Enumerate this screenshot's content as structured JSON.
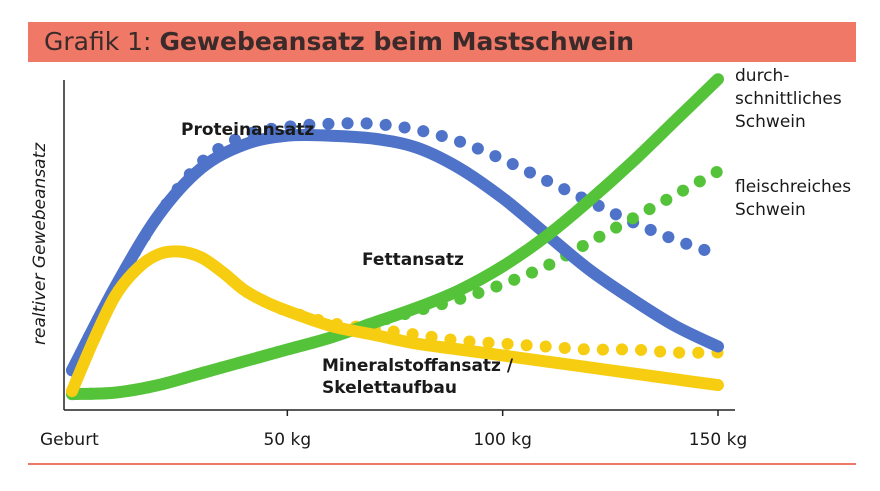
{
  "header": {
    "prefix": "Grafik 1:",
    "title": "Gewebeansatz beim Mastschwein"
  },
  "colors": {
    "header_bg": "#ef7867",
    "protein": "#4f73c9",
    "fat": "#55c33a",
    "mineral": "#f7cd12"
  },
  "chart_data": {
    "type": "line",
    "title": "Gewebeansatz beim Mastschwein",
    "ylabel": "realtiver Gewebeansatz",
    "xlabel": "",
    "xlim": [
      0,
      150
    ],
    "ylim": [
      0,
      100
    ],
    "x_ticks": [
      {
        "value": 0,
        "label": "Geburt"
      },
      {
        "value": 50,
        "label": "50 kg"
      },
      {
        "value": 100,
        "label": "100 kg"
      },
      {
        "value": 150,
        "label": "150 kg"
      }
    ],
    "grid": false,
    "legend": "inline labels",
    "curve_labels": {
      "protein": "Proteinansatz",
      "fat": "Fettansatz",
      "mineral_line1": "Mineralstoffansatz /",
      "mineral_line2": "Skelettaufbau",
      "average_line1": "durch-",
      "average_line2": "schnittliches",
      "average_line3": "Schwein",
      "lean_line1": "fleischreiches",
      "lean_line2": "Schwein"
    },
    "series": [
      {
        "key": "protein_avg",
        "group": "protein",
        "style": "solid",
        "color": "#4f73c9",
        "x": [
          0,
          10,
          20,
          30,
          40,
          50,
          60,
          70,
          80,
          90,
          100,
          110,
          120,
          130,
          140,
          150
        ],
        "values": [
          10,
          38,
          62,
          78,
          86,
          89,
          89,
          88,
          85,
          78,
          68,
          56,
          44,
          34,
          25,
          18
        ]
      },
      {
        "key": "protein_lean",
        "group": "protein",
        "style": "dotted",
        "color": "#4f73c9",
        "x": [
          0,
          10,
          20,
          30,
          40,
          50,
          60,
          70,
          80,
          90,
          100,
          110,
          120,
          130,
          140,
          150
        ],
        "values": [
          10,
          38,
          62,
          80,
          89,
          92,
          93,
          93,
          91,
          87,
          81,
          74,
          67,
          60,
          54,
          49
        ]
      },
      {
        "key": "fat_avg",
        "group": "fat",
        "style": "solid",
        "color": "#55c33a",
        "x": [
          0,
          10,
          20,
          30,
          40,
          50,
          60,
          70,
          80,
          90,
          100,
          110,
          120,
          130,
          140,
          150
        ],
        "values": [
          2,
          2.5,
          5,
          9,
          13,
          17,
          21,
          26,
          31,
          37,
          45,
          55,
          67,
          80,
          94,
          108
        ]
      },
      {
        "key": "fat_lean",
        "group": "fat",
        "style": "dotted",
        "color": "#55c33a",
        "x": [
          0,
          10,
          20,
          30,
          40,
          50,
          60,
          70,
          80,
          90,
          100,
          110,
          120,
          130,
          140,
          150
        ],
        "values": [
          2,
          2.5,
          5,
          9,
          13,
          17,
          21,
          26,
          30,
          34,
          39,
          45,
          53,
          61,
          69,
          77
        ]
      },
      {
        "key": "mineral_avg",
        "group": "mineral",
        "style": "solid",
        "color": "#f7cd12",
        "x": [
          0,
          5,
          10,
          15,
          20,
          25,
          30,
          35,
          40,
          45,
          50,
          60,
          70,
          80,
          90,
          100,
          110,
          120,
          130,
          140,
          150
        ],
        "values": [
          3,
          20,
          35,
          44,
          49,
          50,
          48,
          43,
          37,
          33,
          30,
          25,
          22,
          19,
          17,
          15,
          13,
          11,
          9,
          7,
          5
        ]
      },
      {
        "key": "mineral_lean",
        "group": "mineral",
        "style": "dotted",
        "color": "#f7cd12",
        "x": [
          0,
          5,
          10,
          15,
          20,
          25,
          30,
          35,
          40,
          45,
          50,
          60,
          70,
          80,
          90,
          100,
          110,
          120,
          130,
          140,
          150
        ],
        "values": [
          3,
          20,
          35,
          44,
          49,
          50,
          48,
          43,
          37,
          33,
          30,
          26,
          24,
          22,
          20,
          19,
          18,
          17,
          17,
          16,
          16
        ]
      }
    ]
  }
}
